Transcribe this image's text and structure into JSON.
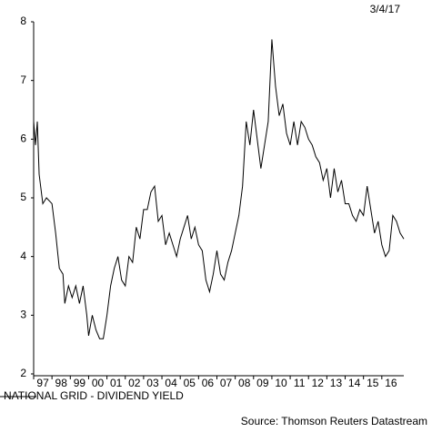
{
  "chart_data": {
    "type": "line",
    "date": "3/4/17",
    "source": "Source: Thomson Reuters Datastream",
    "x": [
      1997.0,
      1997.1,
      1997.2,
      1997.3,
      1997.5,
      1997.7,
      1998.0,
      1998.2,
      1998.4,
      1998.6,
      1998.7,
      1998.9,
      1999.1,
      1999.3,
      1999.5,
      1999.7,
      1999.9,
      2000.0,
      2000.2,
      2000.4,
      2000.6,
      2000.8,
      2001.0,
      2001.2,
      2001.4,
      2001.6,
      2001.8,
      2002.0,
      2002.2,
      2002.4,
      2002.6,
      2002.8,
      2003.0,
      2003.2,
      2003.4,
      2003.6,
      2003.8,
      2004.0,
      2004.2,
      2004.4,
      2004.6,
      2004.8,
      2005.0,
      2005.2,
      2005.4,
      2005.6,
      2005.8,
      2006.0,
      2006.2,
      2006.4,
      2006.6,
      2006.8,
      2007.0,
      2007.2,
      2007.4,
      2007.6,
      2007.8,
      2008.0,
      2008.2,
      2008.4,
      2008.6,
      2008.8,
      2009.0,
      2009.2,
      2009.4,
      2009.6,
      2009.8,
      2010.0,
      2010.2,
      2010.4,
      2010.6,
      2010.8,
      2011.0,
      2011.2,
      2011.4,
      2011.6,
      2011.8,
      2012.0,
      2012.2,
      2012.4,
      2012.6,
      2012.8,
      2013.0,
      2013.2,
      2013.4,
      2013.6,
      2013.8,
      2014.0,
      2014.2,
      2014.4,
      2014.6,
      2014.8,
      2015.0,
      2015.2,
      2015.4,
      2015.6,
      2015.8,
      2016.0,
      2016.2,
      2016.4,
      2016.6,
      2016.8,
      2017.0,
      2017.2
    ],
    "series": [
      {
        "name": "NATIONAL GRID - DIVIDEND YIELD",
        "color": "#000000",
        "values": [
          6.3,
          5.9,
          6.3,
          5.4,
          4.9,
          5.0,
          4.9,
          4.4,
          3.8,
          3.7,
          3.2,
          3.5,
          3.3,
          3.5,
          3.2,
          3.5,
          3.0,
          2.65,
          3.0,
          2.75,
          2.6,
          2.6,
          3.0,
          3.5,
          3.8,
          4.0,
          3.6,
          3.5,
          4.0,
          3.9,
          4.5,
          4.3,
          4.8,
          4.8,
          5.1,
          5.2,
          4.6,
          4.7,
          4.2,
          4.4,
          4.2,
          4.0,
          4.3,
          4.5,
          4.7,
          4.3,
          4.5,
          4.2,
          4.1,
          3.6,
          3.4,
          3.7,
          4.1,
          3.7,
          3.6,
          3.9,
          4.1,
          4.4,
          4.7,
          5.2,
          6.3,
          5.9,
          6.5,
          6.0,
          5.5,
          5.9,
          6.3,
          7.7,
          6.9,
          6.4,
          6.6,
          6.1,
          5.9,
          6.3,
          5.9,
          6.3,
          6.2,
          6.0,
          5.9,
          5.7,
          5.6,
          5.3,
          5.5,
          5.0,
          5.5,
          5.1,
          5.3,
          4.9,
          4.9,
          4.7,
          4.6,
          4.8,
          4.7,
          5.2,
          4.8,
          4.4,
          4.6,
          4.2,
          4.0,
          4.1,
          4.7,
          4.6,
          4.4,
          4.3
        ]
      }
    ],
    "xlim": [
      1997.0,
      2017.2
    ],
    "xticks": [
      {
        "value": 1997,
        "label": "97"
      },
      {
        "value": 1998,
        "label": "98"
      },
      {
        "value": 1999,
        "label": "99"
      },
      {
        "value": 2000,
        "label": "00"
      },
      {
        "value": 2001,
        "label": "01"
      },
      {
        "value": 2002,
        "label": "02"
      },
      {
        "value": 2003,
        "label": "03"
      },
      {
        "value": 2004,
        "label": "04"
      },
      {
        "value": 2005,
        "label": "05"
      },
      {
        "value": 2006,
        "label": "06"
      },
      {
        "value": 2007,
        "label": "07"
      },
      {
        "value": 2008,
        "label": "08"
      },
      {
        "value": 2009,
        "label": "09"
      },
      {
        "value": 2010,
        "label": "10"
      },
      {
        "value": 2011,
        "label": "11"
      },
      {
        "value": 2012,
        "label": "12"
      },
      {
        "value": 2013,
        "label": "13"
      },
      {
        "value": 2014,
        "label": "14"
      },
      {
        "value": 2015,
        "label": "15"
      },
      {
        "value": 2016,
        "label": "16"
      }
    ],
    "ylim": [
      2,
      8
    ],
    "yticks": [
      2,
      3,
      4,
      5,
      6,
      7,
      8
    ]
  }
}
